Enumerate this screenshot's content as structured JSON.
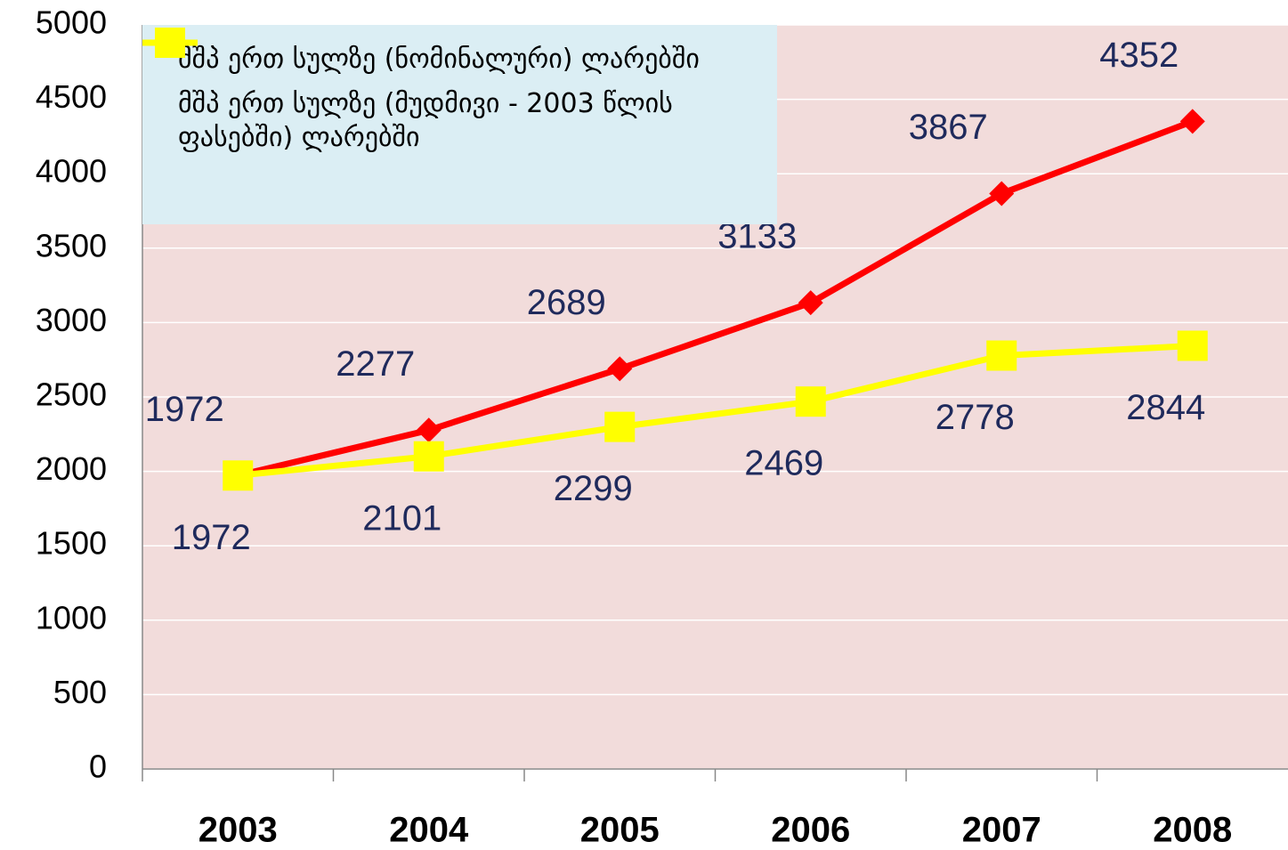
{
  "chart_data": {
    "type": "line",
    "categories": [
      "2003",
      "2004",
      "2005",
      "2006",
      "2007",
      "2008"
    ],
    "series": [
      {
        "name": "მშპ ერთ სულზე (ნომინალური) ლარებში",
        "color": "#ff0000",
        "marker": "diamond",
        "values": [
          1972,
          2277,
          2689,
          3133,
          3867,
          4352
        ]
      },
      {
        "name": "მშპ ერთ სულზე (მუდმივი - 2003 წლის ფასებში) ლარებში",
        "color": "#ffff00",
        "marker": "square",
        "values": [
          1972,
          2101,
          2299,
          2469,
          2778,
          2844
        ]
      }
    ],
    "ylim": [
      0,
      5000
    ],
    "yticks": [
      0,
      500,
      1000,
      1500,
      2000,
      2500,
      3000,
      3500,
      4000,
      4500,
      5000
    ],
    "grid": true,
    "legend": "top-left"
  }
}
